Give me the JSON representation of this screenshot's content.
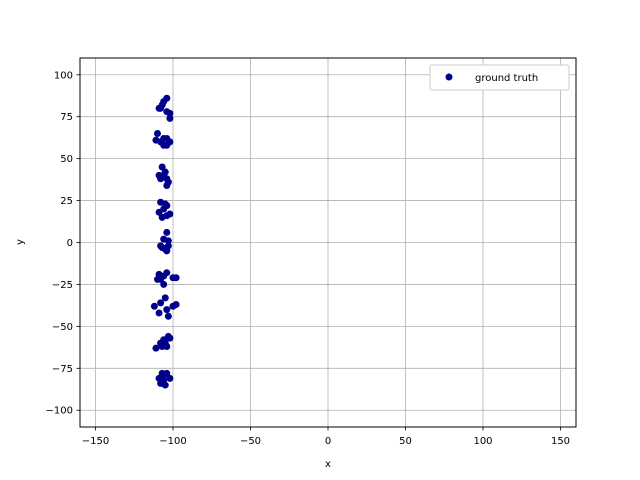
{
  "chart_data": {
    "type": "scatter",
    "xlabel": "x",
    "ylabel": "y",
    "xlim": [
      -160,
      160
    ],
    "ylim": [
      -110,
      110
    ],
    "xticks": [
      -150,
      -100,
      -50,
      0,
      50,
      100,
      150
    ],
    "yticks": [
      -100,
      -75,
      -50,
      -25,
      0,
      25,
      50,
      75,
      100
    ],
    "xtick_labels": [
      "−150",
      "−100",
      "−50",
      "0",
      "50",
      "100",
      "150"
    ],
    "ytick_labels": [
      "−100",
      "−75",
      "−50",
      "−25",
      "0",
      "25",
      "50",
      "75",
      "100"
    ],
    "grid": true,
    "legend_position": "top-right",
    "series": [
      {
        "name": "ground truth",
        "color": "#00008b",
        "points": [
          [
            -108,
            80
          ],
          [
            -106,
            84
          ],
          [
            -104,
            86
          ],
          [
            -104,
            78
          ],
          [
            -102,
            74
          ],
          [
            -102,
            77
          ],
          [
            -107,
            82
          ],
          [
            -109,
            80
          ],
          [
            -110,
            65
          ],
          [
            -111,
            61
          ],
          [
            -108,
            60
          ],
          [
            -106,
            58
          ],
          [
            -104,
            58
          ],
          [
            -104,
            62
          ],
          [
            -102,
            60
          ],
          [
            -106,
            62
          ],
          [
            -107,
            45
          ],
          [
            -106,
            40
          ],
          [
            -108,
            38
          ],
          [
            -104,
            38
          ],
          [
            -104,
            34
          ],
          [
            -103,
            36
          ],
          [
            -105,
            42
          ],
          [
            -109,
            40
          ],
          [
            -108,
            24
          ],
          [
            -106,
            20
          ],
          [
            -109,
            18
          ],
          [
            -104,
            22
          ],
          [
            -104,
            16
          ],
          [
            -102,
            17
          ],
          [
            -107,
            15
          ],
          [
            -105,
            23
          ],
          [
            -104,
            6
          ],
          [
            -106,
            2
          ],
          [
            -108,
            -2
          ],
          [
            -105,
            -4
          ],
          [
            -103,
            -2
          ],
          [
            -103,
            1
          ],
          [
            -107,
            -3
          ],
          [
            -104,
            -5
          ],
          [
            -109,
            -19
          ],
          [
            -108,
            -22
          ],
          [
            -106,
            -25
          ],
          [
            -104,
            -18
          ],
          [
            -100,
            -21
          ],
          [
            -98,
            -21
          ],
          [
            -106,
            -20
          ],
          [
            -110,
            -22
          ],
          [
            -112,
            -38
          ],
          [
            -108,
            -36
          ],
          [
            -105,
            -33
          ],
          [
            -104,
            -40
          ],
          [
            -103,
            -44
          ],
          [
            -100,
            -38
          ],
          [
            -98,
            -37
          ],
          [
            -109,
            -42
          ],
          [
            -111,
            -63
          ],
          [
            -108,
            -60
          ],
          [
            -106,
            -58
          ],
          [
            -104,
            -62
          ],
          [
            -103,
            -56
          ],
          [
            -102,
            -57
          ],
          [
            -107,
            -62
          ],
          [
            -105,
            -60
          ],
          [
            -107,
            -78
          ],
          [
            -106,
            -82
          ],
          [
            -108,
            -84
          ],
          [
            -104,
            -78
          ],
          [
            -102,
            -81
          ],
          [
            -105,
            -85
          ],
          [
            -109,
            -81
          ],
          [
            -106,
            -79
          ]
        ]
      }
    ]
  }
}
